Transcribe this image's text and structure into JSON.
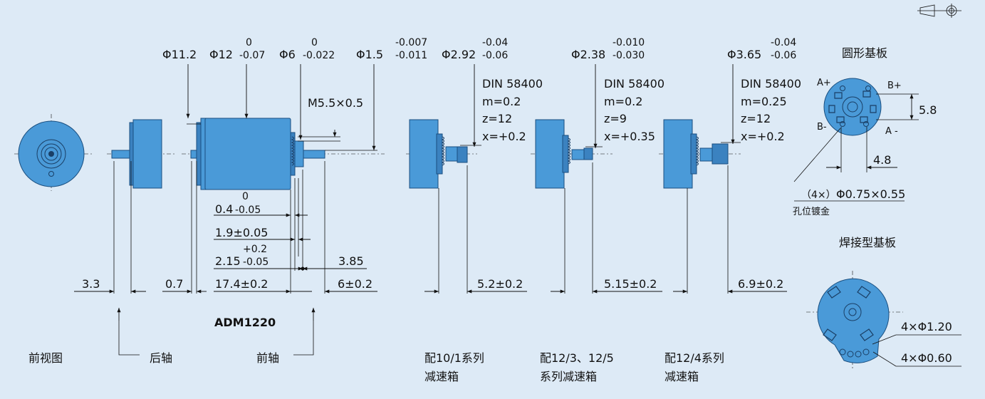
{
  "labels": {
    "front_view": "前视图",
    "rear_shaft": "后轴",
    "front_shaft": "前轴",
    "model": "ADM1220",
    "gear_10_1_line1": "配10/1系列",
    "gear_10_1_line2": "减速箱",
    "gear_12_3_line1": "配12/3、12/5",
    "gear_12_3_line2": "系列减速箱",
    "gear_12_4_line1": "配12/4系列",
    "gear_12_4_line2": "减速箱",
    "round_board": "圆形基板",
    "welded_board": "焊接型基板",
    "hole_gold": "孔位镀金"
  },
  "dims": {
    "d11_2": "Φ11.2",
    "d12": "Φ12",
    "d12_up": "0",
    "d12_lo": "-0.07",
    "d6": "Φ6",
    "d6_up": "0",
    "d6_lo": "-0.022",
    "d1_5": "Φ1.5",
    "d1_5_up": "-0.007",
    "d1_5_lo": "-0.011",
    "d2_92": "Φ2.92",
    "d2_92_up": "-0.04",
    "d2_92_lo": "-0.06",
    "d2_38": "Φ2.38",
    "d2_38_up": "-0.010",
    "d2_38_lo": "-0.030",
    "d3_65": "Φ3.65",
    "d3_65_up": "-0.04",
    "d3_65_lo": "-0.06",
    "thread": "M5.5×0.5",
    "l3_3": "3.3",
    "l0_7": "0.7",
    "l17_4": "17.4±0.2",
    "l6": "6±0.2",
    "l0_4": "0.4",
    "l0_4_up": "0",
    "l0_4_lo": "-0.05",
    "l1_9": "1.9±0.05",
    "l2_15": "2.15",
    "l2_15_up": "+0.2",
    "l2_15_lo": "-0.05",
    "l3_85": "3.85",
    "l5_2": "5.2±0.2",
    "l5_15": "5.15±0.2",
    "l6_9": "6.9±0.2",
    "h5_8": "5.8",
    "w4_8": "4.8",
    "holes_pre": "（4×）",
    "holes": "Φ0.75×0.55",
    "holes_1_20": "4×Φ1.20",
    "holes_0_60": "4×Φ0.60",
    "pin_a_plus": "A+",
    "pin_b_plus": "B+",
    "pin_b_minus": "B-",
    "pin_a_minus": "A -"
  },
  "gears": [
    {
      "spec": "DIN 58400",
      "m": "m=0.2",
      "z": "z=12",
      "x": "x=+0.2"
    },
    {
      "spec": "DIN 58400",
      "m": "m=0.2",
      "z": "z=9",
      "x": "x=+0.35"
    },
    {
      "spec": "DIN 58400",
      "m": "m=0.25",
      "z": "z=12",
      "x": "x=+0.2"
    }
  ],
  "colors": {
    "background": "#ddeaf6",
    "motor_body": "#4a9ad8",
    "outline": "#1a4f80"
  },
  "icons": [
    "projection-symbol-icon"
  ]
}
